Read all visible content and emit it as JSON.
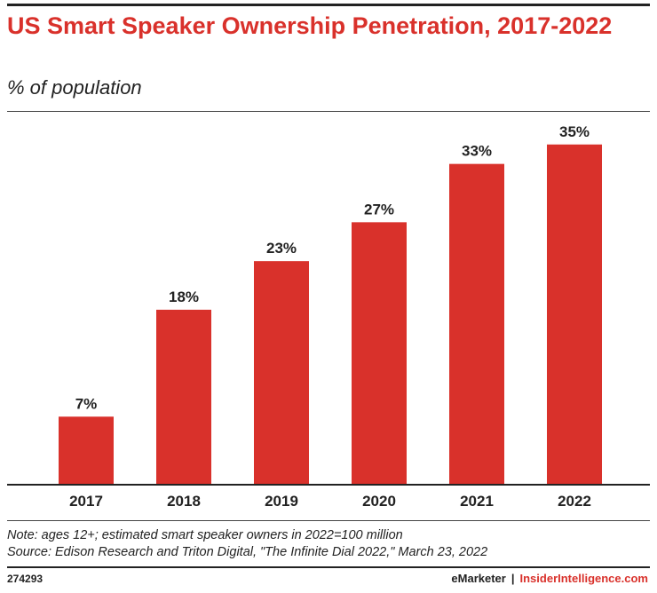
{
  "header": {
    "title": "US Smart Speaker Ownership Penetration, 2017-2022",
    "subtitle": "% of population"
  },
  "chart_data": {
    "type": "bar",
    "title": "US Smart Speaker Ownership Penetration, 2017-2022",
    "subtitle": "% of population",
    "categories": [
      "2017",
      "2018",
      "2019",
      "2020",
      "2021",
      "2022"
    ],
    "values": [
      7,
      18,
      23,
      27,
      33,
      35
    ],
    "data_labels": [
      "7%",
      "18%",
      "23%",
      "27%",
      "33%",
      "35%"
    ],
    "ylim": [
      0,
      40
    ],
    "grid": false,
    "bar_color": "#d9312b"
  },
  "footer": {
    "note": "Note: ages 12+; estimated smart speaker owners in 2022=100 million",
    "source": "Source: Edison Research and Triton Digital, \"The Infinite Dial 2022,\" March 23, 2022",
    "chart_id": "274293",
    "brand_emarketer": "eMarketer",
    "brand_separator": "|",
    "brand_insider": "InsiderIntelligence.com"
  }
}
